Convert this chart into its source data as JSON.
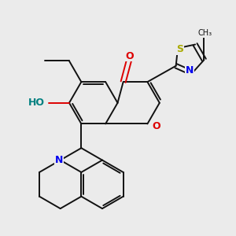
{
  "background_color": "#ebebeb",
  "figsize": [
    3.0,
    3.0
  ],
  "dpi": 100,
  "atoms": {
    "N_blue": "#0000ee",
    "O_red": "#dd0000",
    "S_yellow": "#aaaa00",
    "C_black": "#111111",
    "HO_teal": "#008080"
  },
  "bond_color": "#111111",
  "bond_lw": 1.4,
  "xlim": [
    -0.55,
    1.05
  ],
  "ylim": [
    -1.0,
    0.95
  ]
}
